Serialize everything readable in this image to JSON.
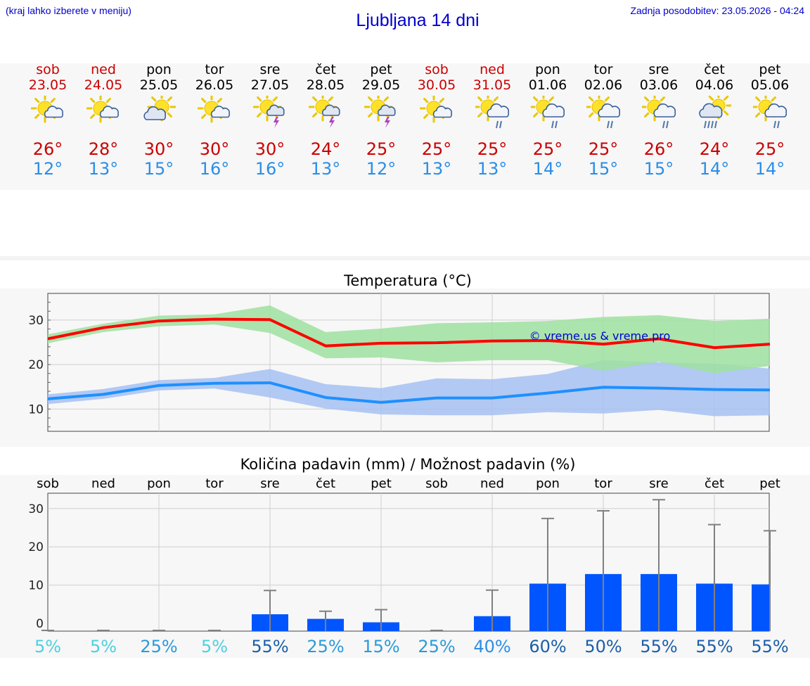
{
  "header": {
    "hint": "(kraj lahko izberete v meniju)",
    "title": "Ljubljana 14 dni",
    "updated": "Zadnja posodobitev: 23.05.2026 - 04:24"
  },
  "days": [
    {
      "name": "sob",
      "date": "23.05",
      "icon": "sun-cloud-icon",
      "tmax": "26°",
      "tmin": "12°",
      "weekend": true
    },
    {
      "name": "ned",
      "date": "24.05",
      "icon": "sun-cloud-icon",
      "tmax": "28°",
      "tmin": "13°",
      "weekend": true
    },
    {
      "name": "pon",
      "date": "25.05",
      "icon": "cloud-sun-icon",
      "tmax": "30°",
      "tmin": "15°",
      "weekend": false
    },
    {
      "name": "tor",
      "date": "26.05",
      "icon": "sun-cloud-icon",
      "tmax": "30°",
      "tmin": "16°",
      "weekend": false
    },
    {
      "name": "sre",
      "date": "27.05",
      "icon": "thunderstorm-icon",
      "tmax": "30°",
      "tmin": "16°",
      "weekend": false
    },
    {
      "name": "čet",
      "date": "28.05",
      "icon": "thunderstorm-icon",
      "tmax": "24°",
      "tmin": "13°",
      "weekend": false
    },
    {
      "name": "pet",
      "date": "29.05",
      "icon": "thunderstorm-icon",
      "tmax": "25°",
      "tmin": "12°",
      "weekend": false
    },
    {
      "name": "sob",
      "date": "30.05",
      "icon": "sun-cloud-icon",
      "tmax": "25°",
      "tmin": "13°",
      "weekend": true
    },
    {
      "name": "ned",
      "date": "31.05",
      "icon": "sun-rain-icon",
      "tmax": "25°",
      "tmin": "13°",
      "weekend": true
    },
    {
      "name": "pon",
      "date": "01.06",
      "icon": "sun-rain-icon",
      "tmax": "25°",
      "tmin": "14°",
      "weekend": false
    },
    {
      "name": "tor",
      "date": "02.06",
      "icon": "sun-rain-icon",
      "tmax": "25°",
      "tmin": "15°",
      "weekend": false
    },
    {
      "name": "sre",
      "date": "03.06",
      "icon": "sun-rain-icon",
      "tmax": "26°",
      "tmin": "15°",
      "weekend": false
    },
    {
      "name": "čet",
      "date": "04.06",
      "icon": "heavy-rain-icon",
      "tmax": "24°",
      "tmin": "14°",
      "weekend": false
    },
    {
      "name": "pet",
      "date": "05.06",
      "icon": "sun-rain-icon",
      "tmax": "25°",
      "tmin": "14°",
      "weekend": false
    }
  ],
  "colors": {
    "max_line": "#ff0000",
    "max_band": "#9fe0a0",
    "min_line": "#1e90ff",
    "min_band": "#a6c1f2",
    "bar": "#0055ff",
    "whisker": "#808080",
    "weekend_text": "#cc0000",
    "min_text": "#2a8ee8"
  },
  "chart_data": [
    {
      "type": "line",
      "title": "Temperatura (°C)",
      "watermark": "© vreme.us & vreme.pro",
      "yticks": [
        10,
        20,
        30
      ],
      "ylim": [
        5,
        36
      ],
      "grid": true,
      "x": [
        "sob",
        "ned",
        "pon",
        "tor",
        "sre",
        "čet",
        "pet",
        "sob",
        "ned",
        "pon",
        "tor",
        "sre",
        "čet",
        "pet"
      ],
      "series": [
        {
          "role": "max",
          "values": [
            25.8,
            28.3,
            29.8,
            30.2,
            30.1,
            24.2,
            24.8,
            24.9,
            25.3,
            25.4,
            24.6,
            25.8,
            23.8,
            24.6
          ]
        },
        {
          "role": "max-upper",
          "values": [
            26.8,
            29.2,
            31.0,
            31.3,
            33.3,
            27.3,
            28.1,
            29.3,
            29.5,
            29.8,
            30.7,
            31.1,
            29.8,
            30.3
          ]
        },
        {
          "role": "max-lower",
          "values": [
            24.8,
            27.3,
            28.6,
            29.0,
            27.1,
            21.4,
            21.6,
            20.5,
            21.0,
            21.0,
            18.6,
            20.6,
            18.0,
            19.7
          ]
        },
        {
          "role": "min",
          "values": [
            12.3,
            13.3,
            15.3,
            15.8,
            15.9,
            12.6,
            11.5,
            12.5,
            12.5,
            13.6,
            14.9,
            14.7,
            14.4,
            14.3
          ]
        },
        {
          "role": "min-upper",
          "values": [
            13.3,
            14.5,
            16.5,
            17.0,
            19.0,
            15.6,
            14.7,
            16.9,
            16.7,
            17.9,
            21.0,
            20.5,
            20.2,
            19.1
          ]
        },
        {
          "role": "min-lower",
          "values": [
            11.1,
            12.3,
            14.2,
            14.6,
            12.6,
            10.1,
            8.8,
            8.6,
            8.6,
            9.3,
            9.0,
            9.8,
            8.4,
            8.6
          ]
        }
      ]
    },
    {
      "type": "bar",
      "title": "Količina padavin (mm) / Možnost padavin (%)",
      "yticks": [
        0,
        10,
        20,
        30
      ],
      "ylim": [
        -2,
        34
      ],
      "grid": true,
      "categories": [
        "sob",
        "ned",
        "pon",
        "tor",
        "sre",
        "čet",
        "pet",
        "sob",
        "ned",
        "pon",
        "tor",
        "sre",
        "čet",
        "pet"
      ],
      "values": [
        0,
        0,
        0,
        0,
        2.4,
        1.2,
        0.3,
        0,
        1.9,
        10.4,
        12.9,
        12.9,
        10.4,
        10.2
      ],
      "upper": [
        0,
        0,
        0,
        0,
        8.6,
        3.2,
        3.6,
        0,
        8.7,
        27.4,
        29.4,
        32.3,
        25.8,
        24.2
      ],
      "probability": [
        "5%",
        "5%",
        "25%",
        "5%",
        "55%",
        "25%",
        "15%",
        "25%",
        "40%",
        "60%",
        "50%",
        "55%",
        "55%",
        "55%"
      ],
      "probability_colors": [
        "#4dd0e1",
        "#4dd0e1",
        "#2a9ad8",
        "#4dd0e1",
        "#1a5fa8",
        "#2a9ad8",
        "#2a9ad8",
        "#2a9ad8",
        "#2a8ee8",
        "#1a5fa8",
        "#1a5fa8",
        "#1a5fa8",
        "#1a5fa8",
        "#1a5fa8"
      ]
    }
  ]
}
